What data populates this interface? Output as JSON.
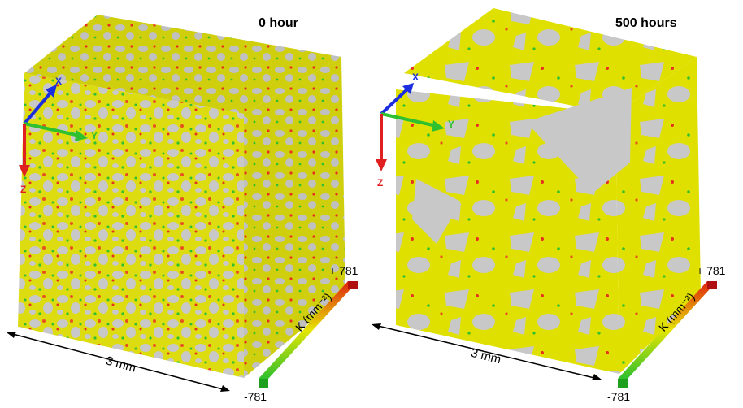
{
  "panels": [
    {
      "title": "0 hour",
      "scale_bar": "3 mm",
      "colorbar": {
        "max_label": "+ 781",
        "min_label": "-781",
        "unit_label": "K (mm⁻²)"
      },
      "axes": {
        "x": "X",
        "y": "Y",
        "z": "Z"
      }
    },
    {
      "title": "500 hours",
      "scale_bar": "3 mm",
      "colorbar": {
        "max_label": "+ 781",
        "min_label": "-781",
        "unit_label": "K (mm⁻²)"
      },
      "axes": {
        "x": "X",
        "y": "Y",
        "z": "Z"
      }
    }
  ],
  "colors": {
    "surface": "#e6e600",
    "section": "#c8c8c8",
    "curvature_high": "#e8301f",
    "curvature_low": "#2ec02e",
    "axis_x": "#1a2ee0",
    "axis_y": "#2ec02e",
    "axis_z": "#e02020"
  }
}
